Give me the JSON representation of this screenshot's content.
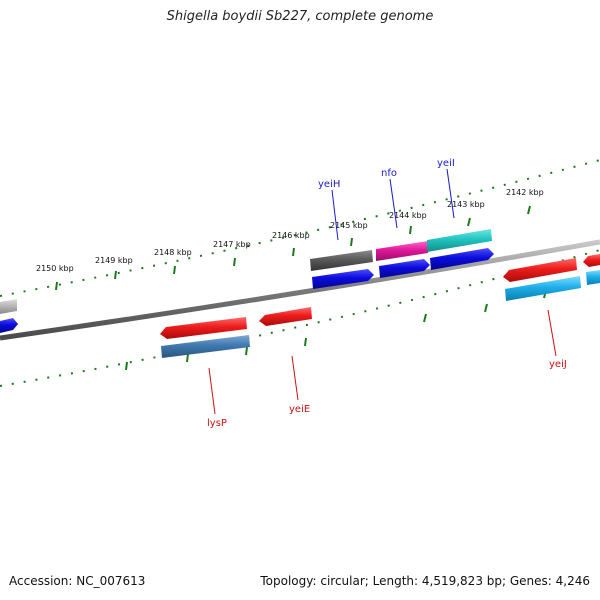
{
  "title": "Shigella boydii Sb227, complete genome",
  "footer": {
    "accession": "Accession: NC_007613",
    "summary": "Topology: circular; Length: 4,519,823 bp; Genes: 4,246"
  },
  "kbp_labels": [
    "2150 kbp",
    "2149 kbp",
    "2148 kbp",
    "2147 kbp",
    "2146 kbp",
    "2145 kbp",
    "2144 kbp",
    "2143 kbp",
    "2142 kbp"
  ],
  "gene_labels": {
    "forward": [
      "yeiH",
      "nfo",
      "yeiI"
    ],
    "reverse": [
      "lysP",
      "yeiE",
      "yeiJ"
    ]
  },
  "colors": {
    "forward_label": "#1a1acc",
    "reverse_label": "#cc1111",
    "tick": "#1a7a1a",
    "backbone": "#7a7a7a",
    "red_feature": "#e81818",
    "blue_feature": "#0b0bdc",
    "steel_feature": "#3f79b0",
    "cyan_feature": "#1eaee8",
    "teal_feature": "#22c4c0",
    "magenta_feature": "#e0189a",
    "gray_feature": "#5a5a5a",
    "lightgray_feature": "#b8b8b8"
  }
}
